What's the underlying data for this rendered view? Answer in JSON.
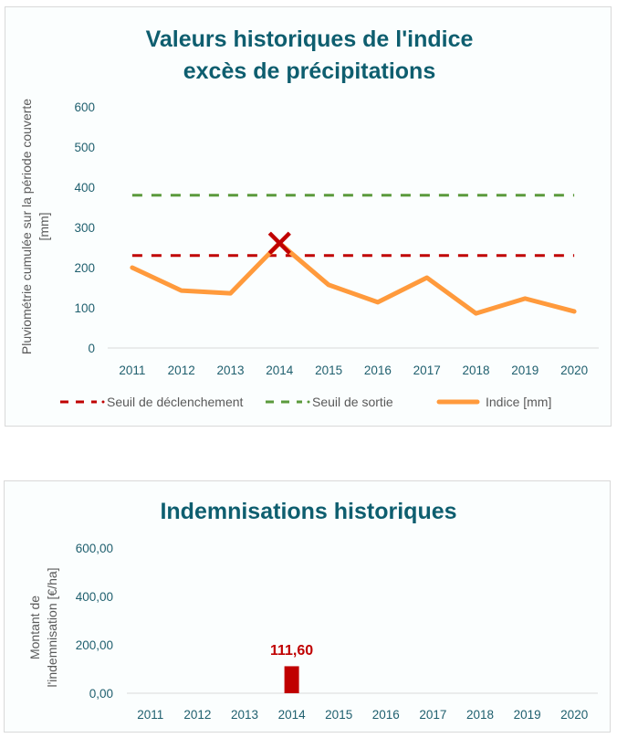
{
  "chart_data": [
    {
      "type": "line",
      "title": [
        "Valeurs historiques de l'indice",
        "excès de précipitations"
      ],
      "xlabel": "",
      "ylabel": [
        "Pluviométrie cumulée sur la période couverte",
        "[mm]"
      ],
      "categories": [
        "2011",
        "2012",
        "2013",
        "2014",
        "2015",
        "2016",
        "2017",
        "2018",
        "2019",
        "2020"
      ],
      "ylim": [
        0,
        600
      ],
      "yticks": [
        "0",
        "100",
        "200",
        "300",
        "400",
        "500",
        "600"
      ],
      "ytick_values": [
        0,
        100,
        200,
        300,
        400,
        500,
        600
      ],
      "grid": false,
      "series": [
        {
          "name": "Seuil de déclenchement",
          "style": "dashed",
          "color": "#c00000",
          "values": [
            230,
            230,
            230,
            230,
            230,
            230,
            230,
            230,
            230,
            230
          ]
        },
        {
          "name": "Seuil de sortie",
          "style": "dashed",
          "color": "#5b9a3c",
          "values": [
            380,
            380,
            380,
            380,
            380,
            380,
            380,
            380,
            380,
            380
          ]
        },
        {
          "name": "Indice [mm]",
          "style": "solid",
          "color": "#ff9a3c",
          "values": [
            200,
            143,
            136,
            261,
            157,
            114,
            175,
            86,
            123,
            91
          ]
        }
      ],
      "markers": [
        {
          "category": "2014",
          "value": 261,
          "symbol": "x",
          "color": "#c00000"
        }
      ],
      "legend": {
        "position": "bottom",
        "entries": [
          "Seuil de déclenchement",
          "Seuil de sortie",
          "Indice [mm]"
        ]
      }
    },
    {
      "type": "bar",
      "title": "Indemnisations historiques",
      "xlabel": "",
      "ylabel": [
        "Montant de",
        "l'indemnisation [€/ha]"
      ],
      "categories": [
        "2011",
        "2012",
        "2013",
        "2014",
        "2015",
        "2016",
        "2017",
        "2018",
        "2019",
        "2020"
      ],
      "values": [
        0,
        0,
        0,
        111.6,
        0,
        0,
        0,
        0,
        0,
        0
      ],
      "data_labels": {
        "2014": "111,60"
      },
      "ylim": [
        0,
        600
      ],
      "yticks": [
        "0,00",
        "200,00",
        "400,00",
        "600,00"
      ],
      "ytick_values": [
        0,
        200,
        400,
        600
      ],
      "grid": false,
      "bar_color": "#c00000"
    }
  ]
}
